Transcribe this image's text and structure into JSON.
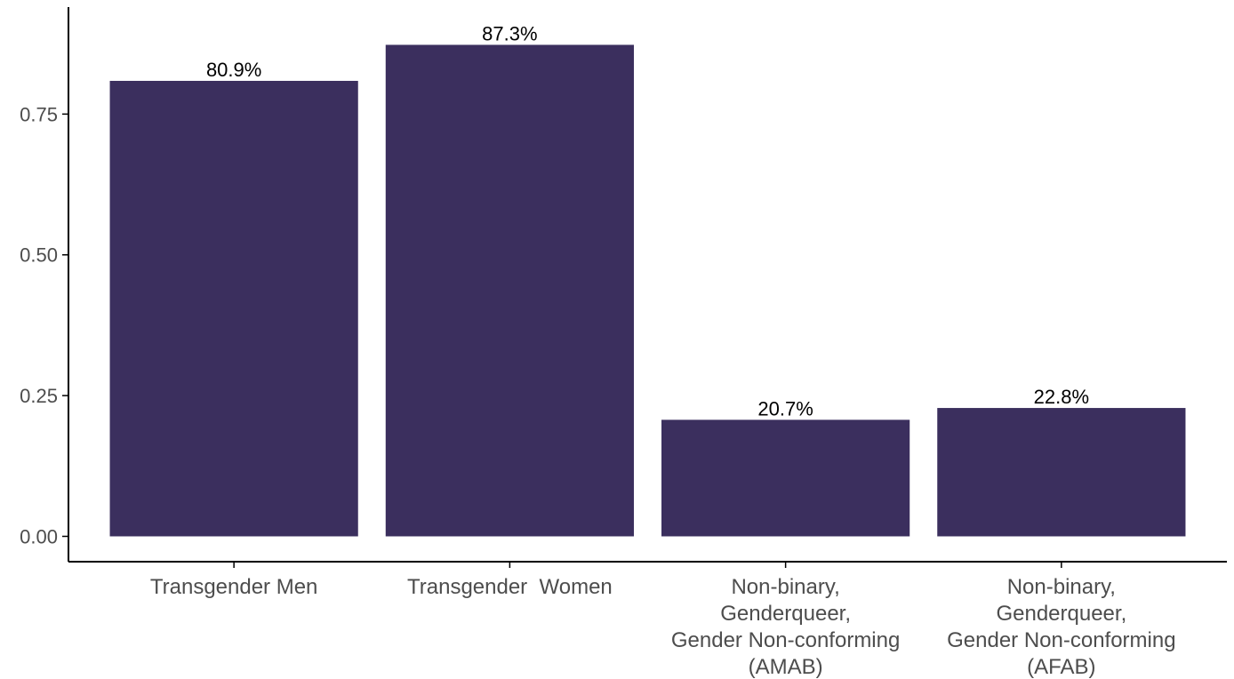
{
  "chart_data": {
    "type": "bar",
    "categories": [
      [
        "Transgender Men"
      ],
      [
        "Transgender  Women"
      ],
      [
        "Non-binary,",
        "Genderqueer,",
        "Gender Non-conforming",
        "(AMAB)"
      ],
      [
        "Non-binary,",
        "Genderqueer,",
        "Gender Non-conforming",
        "(AFAB)"
      ]
    ],
    "values": [
      0.809,
      0.873,
      0.207,
      0.228
    ],
    "data_labels": [
      "80.9%",
      "87.3%",
      "20.7%",
      "22.8%"
    ],
    "yticks": [
      {
        "value": 0.0,
        "label": "0.00"
      },
      {
        "value": 0.25,
        "label": "0.25"
      },
      {
        "value": 0.5,
        "label": "0.50"
      },
      {
        "value": 0.75,
        "label": "0.75"
      }
    ],
    "ylim": [
      -0.045,
      0.94
    ],
    "title": "",
    "xlabel": "",
    "ylabel": "",
    "grid": false,
    "legend": "none",
    "bar_color": "#3b2f5e",
    "axis_color": "#000000",
    "tick_label_color": "#4d4d4d"
  }
}
